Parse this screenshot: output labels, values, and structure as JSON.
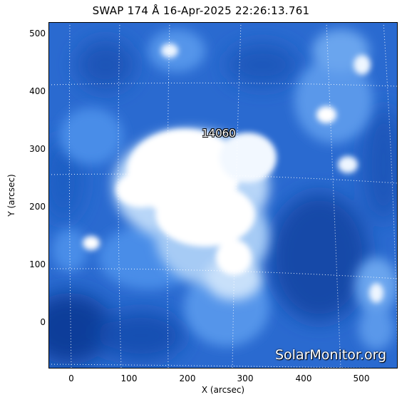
{
  "title": "SWAP 174 Å 16-Apr-2025 22:26:13.761",
  "image": {
    "subject": "solar corona EUV",
    "colormap": [
      "#0a2e7a",
      "#1f5fc4",
      "#3f86e6",
      "#8cb9f2",
      "#ffffff"
    ],
    "grid": true
  },
  "axes": {
    "xlabel": "X (arcsec)",
    "ylabel": "Y (arcsec)",
    "xticks": [
      "0",
      "100",
      "200",
      "300",
      "400",
      "500"
    ],
    "yticks": [
      "500",
      "400",
      "300",
      "200",
      "100",
      "0"
    ],
    "xlim": [
      -40,
      560
    ],
    "ylim": [
      -80,
      515
    ]
  },
  "region_label": "14060",
  "watermark": "SolarMonitor.org"
}
